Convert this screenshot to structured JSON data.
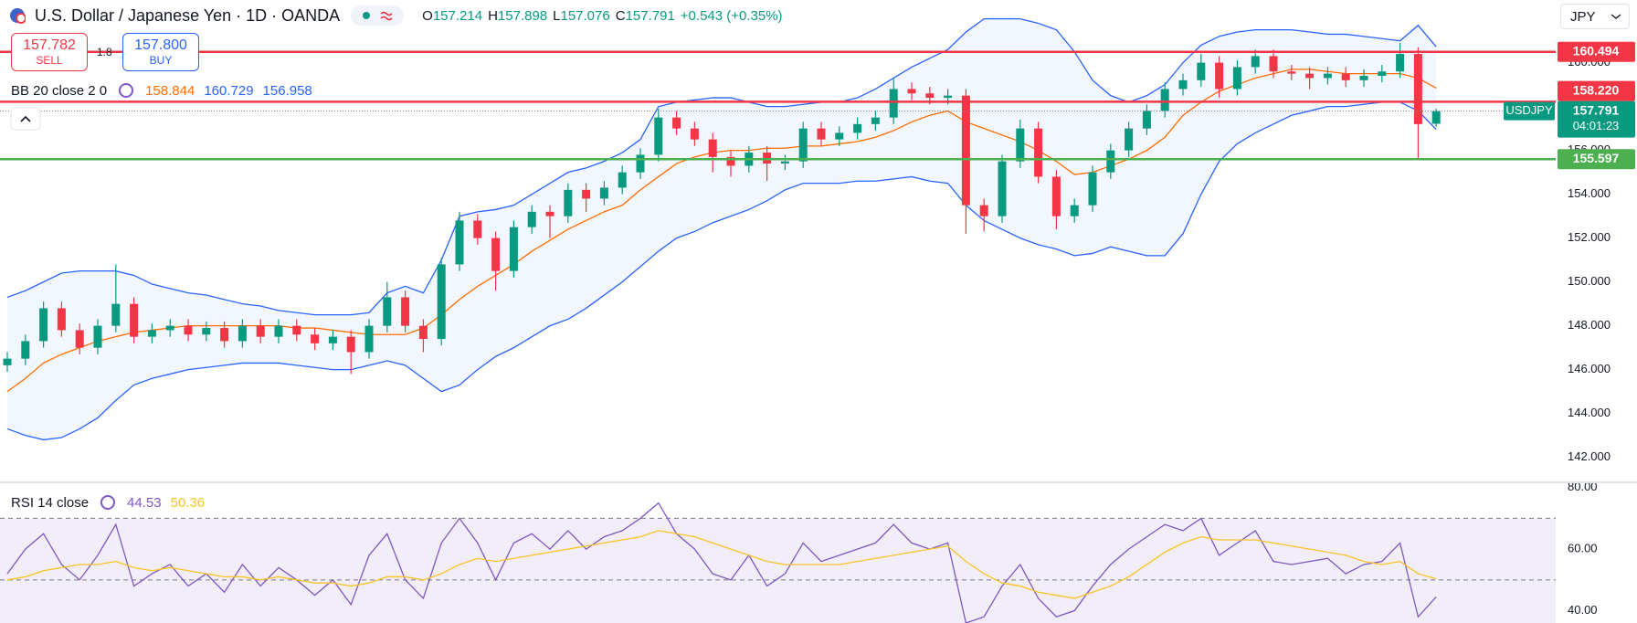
{
  "header": {
    "symbol": "U.S. Dollar / Japanese Yen · 1D · OANDA",
    "currency": "JPY"
  },
  "trade": {
    "sell_price": "157.782",
    "sell": "SELL",
    "spread": "1.8",
    "buy_price": "157.800",
    "buy": "BUY"
  },
  "chart_data": [
    {
      "type": "candlestick",
      "ohlc_prefixes": [
        "O",
        "H",
        "L",
        "C"
      ],
      "change": "+0.543 (+0.35%)",
      "ticker": "USDJPY",
      "countdown": "04:01:23",
      "up_color": "#089981",
      "down_color": "#f23645",
      "open": [
        146.2,
        146.5,
        147.3,
        148.8,
        147.8,
        147.0,
        148.0,
        149.0,
        147.5,
        147.8,
        148.0,
        147.6,
        147.9,
        147.3,
        148.0,
        147.5,
        148.0,
        147.6,
        147.2,
        147.5,
        146.8,
        148.0,
        149.3,
        148.0,
        147.4,
        150.8,
        152.8,
        152.0,
        150.5,
        152.5,
        153.2,
        153.0,
        154.2,
        153.8,
        154.3,
        155.0,
        155.8,
        157.5,
        157.0,
        156.5,
        155.7,
        155.3,
        155.9,
        155.4,
        155.5,
        157.0,
        156.5,
        156.8,
        157.2,
        157.5,
        158.8,
        158.6,
        158.4,
        158.5,
        153.5,
        153.0,
        155.5,
        157.0,
        154.8,
        153.0,
        153.5,
        155.0,
        156.0,
        157.0,
        157.8,
        158.8,
        159.2,
        160.0,
        158.8,
        159.8,
        160.3,
        159.6,
        159.5,
        159.3,
        159.5,
        159.2,
        159.4,
        159.6,
        160.4,
        157.214
      ],
      "high": [
        146.8,
        147.6,
        149.1,
        149.1,
        148.1,
        148.3,
        150.8,
        149.3,
        148.1,
        148.3,
        148.3,
        148.2,
        148.2,
        148.3,
        148.3,
        148.3,
        148.3,
        147.9,
        147.8,
        147.8,
        148.3,
        150.0,
        149.6,
        148.3,
        151.1,
        153.2,
        153.1,
        152.3,
        152.8,
        153.5,
        153.5,
        154.5,
        154.5,
        154.6,
        155.3,
        156.1,
        157.9,
        157.8,
        157.3,
        156.8,
        156.0,
        156.2,
        156.2,
        155.8,
        157.3,
        157.3,
        157.1,
        157.5,
        157.8,
        159.3,
        159.1,
        158.9,
        158.8,
        158.8,
        153.8,
        155.8,
        157.4,
        157.3,
        155.1,
        153.8,
        155.3,
        156.3,
        157.3,
        158.1,
        159.1,
        159.5,
        160.4,
        160.3,
        160.1,
        160.6,
        160.6,
        159.9,
        159.8,
        159.8,
        159.8,
        159.7,
        159.9,
        160.9,
        160.7,
        157.898
      ],
      "low": [
        145.9,
        146.2,
        147.0,
        147.5,
        146.7,
        146.7,
        147.7,
        147.2,
        147.2,
        147.5,
        147.3,
        147.3,
        147.0,
        147.0,
        147.2,
        147.2,
        147.3,
        146.9,
        146.9,
        145.8,
        146.5,
        147.7,
        147.7,
        146.8,
        147.1,
        150.5,
        151.7,
        149.6,
        150.2,
        152.2,
        152.0,
        152.7,
        153.2,
        153.5,
        154.0,
        154.7,
        155.5,
        156.7,
        156.2,
        155.0,
        154.8,
        155.0,
        154.6,
        155.1,
        155.2,
        156.2,
        156.2,
        156.5,
        156.9,
        157.2,
        158.3,
        158.1,
        158.1,
        152.2,
        152.3,
        152.7,
        155.2,
        154.5,
        152.4,
        152.7,
        153.2,
        154.7,
        155.7,
        156.7,
        157.5,
        158.5,
        158.9,
        158.4,
        158.5,
        159.5,
        159.3,
        159.2,
        158.8,
        159.0,
        158.9,
        158.9,
        159.1,
        159.3,
        155.6,
        157.076
      ],
      "close": [
        146.5,
        147.3,
        148.8,
        147.8,
        147.0,
        148.0,
        149.0,
        147.5,
        147.8,
        148.0,
        147.6,
        147.9,
        147.3,
        148.0,
        147.5,
        148.0,
        147.6,
        147.2,
        147.5,
        146.8,
        148.0,
        149.3,
        148.0,
        147.4,
        150.8,
        152.8,
        152.0,
        150.5,
        152.5,
        153.2,
        153.0,
        154.2,
        153.8,
        154.3,
        155.0,
        155.8,
        157.5,
        157.0,
        156.5,
        155.7,
        155.3,
        155.9,
        155.4,
        155.5,
        157.0,
        156.5,
        156.8,
        157.2,
        157.5,
        158.8,
        158.6,
        158.4,
        158.5,
        153.5,
        153.0,
        155.5,
        157.0,
        154.8,
        153.0,
        153.5,
        155.0,
        156.0,
        157.0,
        157.8,
        158.8,
        159.2,
        160.0,
        158.8,
        159.8,
        160.3,
        159.6,
        159.5,
        159.3,
        159.5,
        159.2,
        159.4,
        159.6,
        160.4,
        157.2,
        157.791
      ],
      "ylim": [
        140.86,
        162.86
      ],
      "yticks": [
        {
          "value": 142,
          "label": "142.000"
        },
        {
          "value": 144,
          "label": "144.000"
        },
        {
          "value": 146,
          "label": "146.000"
        },
        {
          "value": 148,
          "label": "148.000"
        },
        {
          "value": 150,
          "label": "150.000"
        },
        {
          "value": 152,
          "label": "152.000"
        },
        {
          "value": 154,
          "label": "154.000"
        },
        {
          "value": 156,
          "label": "156.000"
        },
        {
          "value": 158,
          "label": "158.000"
        },
        {
          "value": 160,
          "label": "160.000"
        }
      ],
      "bollinger": {
        "title": "BB 20 close 2 0",
        "fill": "#2962ff",
        "series": [
          {
            "color": "#ff6d00",
            "values": [
              145.0,
              145.6,
              146.3,
              146.7,
              147.0,
              147.3,
              147.5,
              147.7,
              147.8,
              147.9,
              148.0,
              148.0,
              148.0,
              148.0,
              148.0,
              148.0,
              147.9,
              147.9,
              147.8,
              147.7,
              147.6,
              147.6,
              147.6,
              147.9,
              148.5,
              149.2,
              149.8,
              150.3,
              150.8,
              151.4,
              151.9,
              152.4,
              152.8,
              153.2,
              153.5,
              154.2,
              154.8,
              155.4,
              155.7,
              155.9,
              156.0,
              156.0,
              156.1,
              156.1,
              156.2,
              156.2,
              156.3,
              156.4,
              156.6,
              156.9,
              157.3,
              157.6,
              157.8,
              157.3,
              157.0,
              156.7,
              156.4,
              156.0,
              155.5,
              154.9,
              155.0,
              155.3,
              155.6,
              156.0,
              156.6,
              157.6,
              158.2,
              158.7,
              159.0,
              159.3,
              159.5,
              159.7,
              159.7,
              159.6,
              159.5,
              159.5,
              159.5,
              159.5,
              159.3,
              158.844
            ]
          },
          {
            "color": "#2962ff",
            "values": [
              149.3,
              149.6,
              150.0,
              150.4,
              150.5,
              150.5,
              150.5,
              150.3,
              149.9,
              149.7,
              149.5,
              149.4,
              149.2,
              149.0,
              148.9,
              148.7,
              148.6,
              148.5,
              148.5,
              148.5,
              148.6,
              149.5,
              149.8,
              149.5,
              151.0,
              153.0,
              153.2,
              153.3,
              153.5,
              154.0,
              154.5,
              155.0,
              155.2,
              155.5,
              155.9,
              156.5,
              158.0,
              158.2,
              158.3,
              158.4,
              158.4,
              158.2,
              158.0,
              158.0,
              158.1,
              158.2,
              158.2,
              158.4,
              158.8,
              159.3,
              159.8,
              160.2,
              160.6,
              161.4,
              162.0,
              162.0,
              162.0,
              161.8,
              161.5,
              160.5,
              159.2,
              158.5,
              158.2,
              158.5,
              159.0,
              160.0,
              160.8,
              161.2,
              161.4,
              161.5,
              161.5,
              161.5,
              161.4,
              161.3,
              161.3,
              161.2,
              161.1,
              161.0,
              161.7,
              160.729
            ]
          },
          {
            "color": "#2962ff",
            "values": [
              143.3,
              143.0,
              142.8,
              142.9,
              143.3,
              143.8,
              144.6,
              145.3,
              145.6,
              145.8,
              146.0,
              146.1,
              146.2,
              146.3,
              146.3,
              146.3,
              146.2,
              146.1,
              146.0,
              146.0,
              146.2,
              146.4,
              146.2,
              145.6,
              145.0,
              145.3,
              146.0,
              146.6,
              147.0,
              147.5,
              148.0,
              148.3,
              148.8,
              149.4,
              150.0,
              150.7,
              151.4,
              152.0,
              152.3,
              152.7,
              153.0,
              153.3,
              153.7,
              154.2,
              154.5,
              154.5,
              154.5,
              154.6,
              154.6,
              154.7,
              154.8,
              154.6,
              154.5,
              153.5,
              152.8,
              152.4,
              152.0,
              151.7,
              151.5,
              151.2,
              151.3,
              151.6,
              151.4,
              151.2,
              151.2,
              152.2,
              154.0,
              155.5,
              156.3,
              156.8,
              157.2,
              157.6,
              157.8,
              158.0,
              158.0,
              158.1,
              158.2,
              158.2,
              157.8,
              156.958
            ]
          }
        ]
      },
      "levels": [
        {
          "value": 160.494,
          "color": "#f23645"
        },
        {
          "value": 158.22,
          "label": "158.220",
          "color": "#f23645"
        },
        {
          "value": 155.597,
          "color": "#4caf50"
        }
      ]
    },
    {
      "type": "line",
      "title": "RSI 14 close",
      "series": [
        {
          "color": "#7e57c2",
          "values": [
            52,
            60,
            65,
            55,
            50,
            58,
            68,
            48,
            52,
            55,
            48,
            52,
            46,
            55,
            48,
            54,
            50,
            45,
            50,
            42,
            58,
            65,
            50,
            44,
            62,
            70,
            62,
            50,
            62,
            65,
            60,
            66,
            60,
            64,
            66,
            70,
            75,
            65,
            60,
            52,
            50,
            58,
            48,
            52,
            62,
            56,
            58,
            60,
            62,
            68,
            62,
            60,
            62,
            36,
            38,
            48,
            55,
            44,
            38,
            40,
            48,
            55,
            60,
            64,
            68,
            66,
            70,
            58,
            62,
            66,
            56,
            55,
            56,
            57,
            52,
            55,
            56,
            62,
            38,
            44.53
          ]
        },
        {
          "color": "#f7c325",
          "values": [
            50,
            51,
            53,
            54,
            55,
            55,
            56,
            54,
            53,
            54,
            53,
            52,
            51,
            51,
            50,
            51,
            50,
            49,
            49,
            48,
            49,
            51,
            51,
            50,
            52,
            55,
            57,
            56,
            57,
            58,
            59,
            60,
            61,
            62,
            63,
            64,
            66,
            65,
            64,
            62,
            60,
            58,
            56,
            55,
            55,
            55,
            55,
            56,
            57,
            58,
            59,
            60,
            61,
            56,
            52,
            49,
            48,
            46,
            45,
            44,
            46,
            48,
            51,
            55,
            59,
            62,
            64,
            63,
            63,
            63,
            62,
            61,
            60,
            59,
            58,
            56,
            55,
            56,
            52,
            50.36
          ]
        }
      ],
      "ylim": [
        36,
        81.7
      ],
      "yticks": [
        {
          "value": 40,
          "label": "40.00"
        },
        {
          "value": 60,
          "label": "60.00"
        },
        {
          "value": 80,
          "label": "80.00"
        }
      ],
      "bands": [
        70,
        50
      ],
      "band_fill": "#7e57c2"
    }
  ]
}
